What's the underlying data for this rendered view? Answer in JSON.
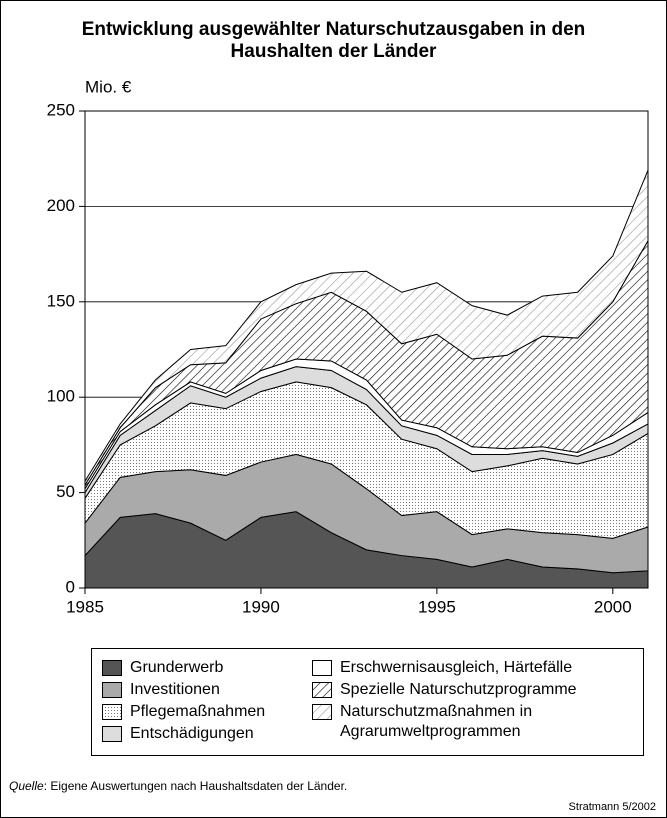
{
  "chart_data": {
    "type": "stacked_area",
    "title": "Entwicklung ausgewählter Naturschutzausgaben in den Haushalten der Länder",
    "y_label": "Mio. €",
    "x": [
      1985,
      1986,
      1987,
      1988,
      1989,
      1990,
      1991,
      1992,
      1993,
      1994,
      1995,
      1996,
      1997,
      1998,
      1999,
      2000,
      2001
    ],
    "xlim": [
      1985,
      2001
    ],
    "xticks": [
      1985,
      1990,
      1995,
      2000
    ],
    "ylim": [
      0,
      250
    ],
    "yticks": [
      0,
      50,
      100,
      150,
      200,
      250
    ],
    "grid": true,
    "series": [
      {
        "name": "Grunderwerb",
        "color": "#555555",
        "pattern": null,
        "values": [
          17,
          37,
          39,
          34,
          25,
          37,
          40,
          29,
          20,
          17,
          15,
          11,
          15,
          11,
          10,
          8,
          9
        ]
      },
      {
        "name": "Investitionen",
        "color": "#aaaaaa",
        "pattern": null,
        "values": [
          17,
          21,
          22,
          28,
          34,
          29,
          30,
          36,
          32,
          21,
          25,
          17,
          16,
          18,
          18,
          18,
          23
        ]
      },
      {
        "name": "Pflegemaßnahmen",
        "color": "#ffffff",
        "pattern": "dots",
        "values": [
          13,
          17,
          24,
          35,
          35,
          37,
          38,
          40,
          44,
          40,
          33,
          33,
          33,
          39,
          37,
          44,
          49
        ]
      },
      {
        "name": "Entschädigungen",
        "color": "#dddddd",
        "pattern": null,
        "values": [
          3,
          5,
          8,
          9,
          6,
          7,
          8,
          9,
          8,
          7,
          7,
          9,
          6,
          4,
          4,
          6,
          5
        ]
      },
      {
        "name": "Erschwernisausgleich, Härtefälle",
        "color": "#ffffff",
        "pattern": null,
        "values": [
          2,
          2,
          3,
          2,
          2,
          4,
          4,
          5,
          5,
          3,
          4,
          4,
          3,
          2,
          2,
          4,
          6
        ]
      },
      {
        "name": "Spezielle Naturschutzprogramme",
        "color": "#ffffff",
        "pattern": "hatch",
        "values": [
          2,
          2,
          9,
          9,
          16,
          27,
          29,
          36,
          36,
          40,
          49,
          46,
          49,
          58,
          60,
          70,
          90
        ]
      },
      {
        "name": "Naturschutzmaßnahmen in Agrarumweltprogrammen",
        "color": "#ffffff",
        "pattern": "hatch-light",
        "values": [
          2,
          2,
          4,
          8,
          9,
          9,
          10,
          10,
          21,
          27,
          27,
          28,
          21,
          21,
          24,
          24,
          37
        ]
      }
    ],
    "source_label": "Quelle",
    "source_text": ": Eigene Auswertungen nach Haushaltsdaten der Länder.",
    "credit": "Stratmann 5/2002"
  }
}
